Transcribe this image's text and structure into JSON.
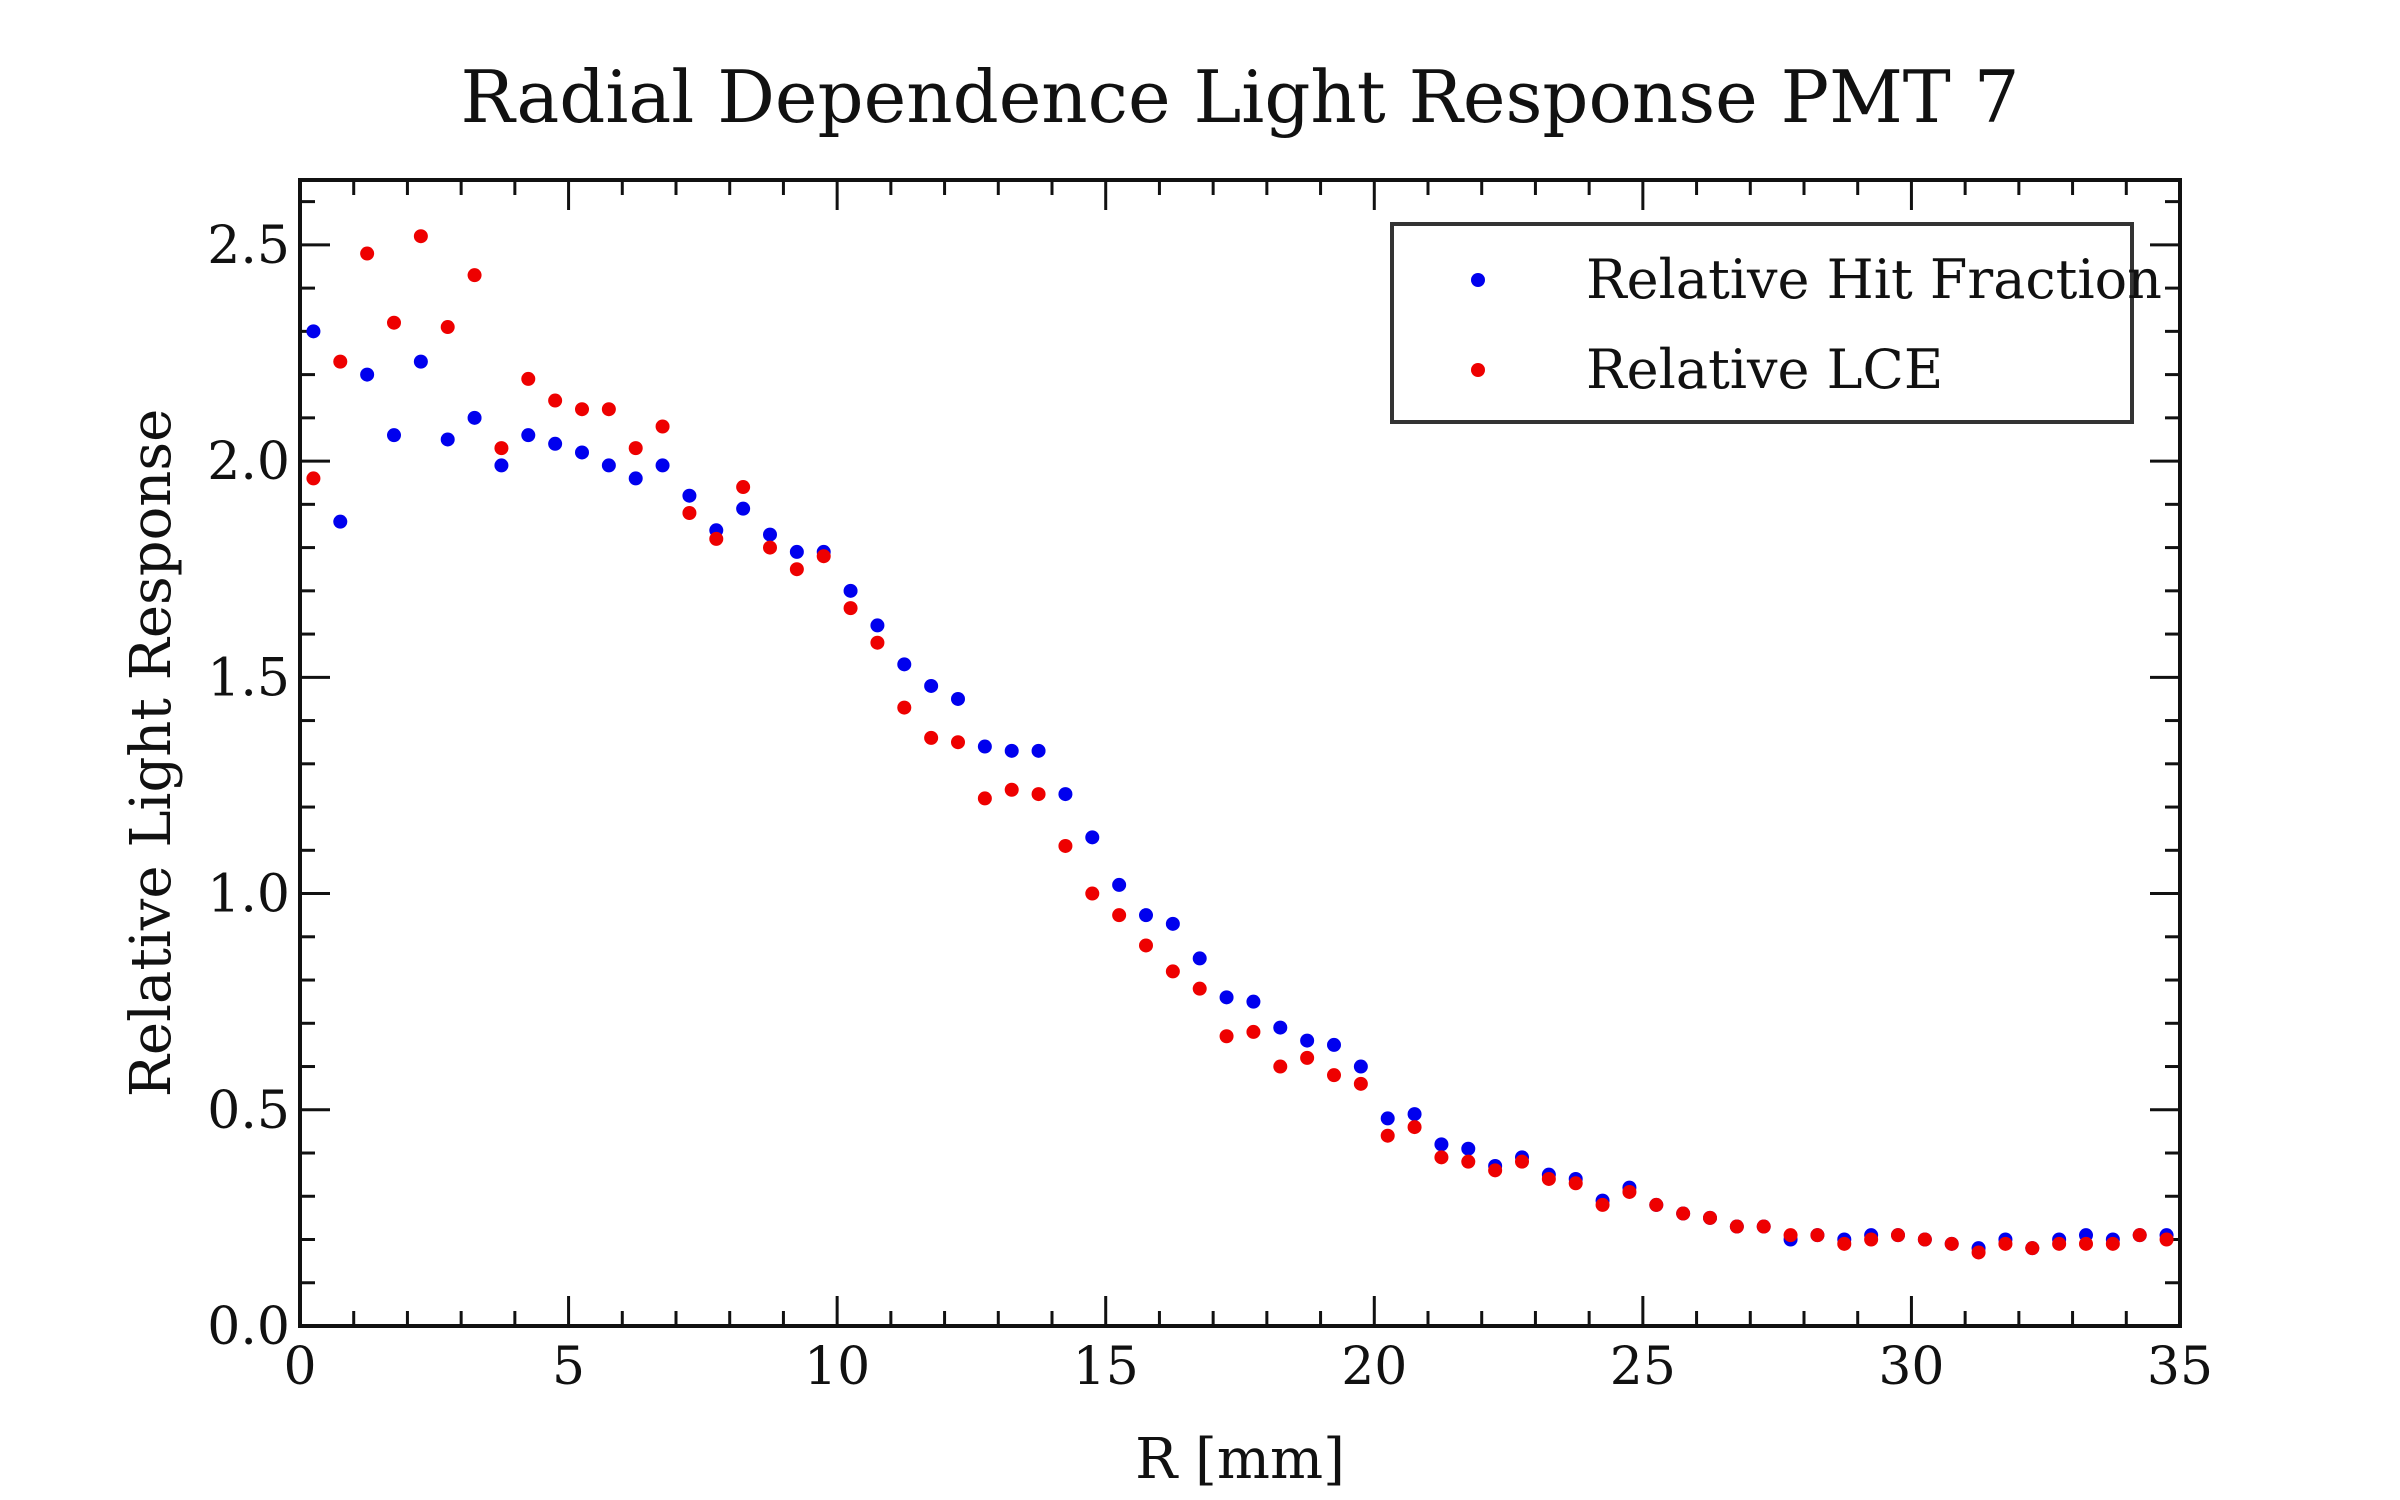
{
  "chart_data": {
    "type": "scatter",
    "title": "Radial Dependence Light Response PMT 7",
    "xlabel": "R [mm]",
    "ylabel": "Relative Light Response",
    "xlim": [
      0,
      35
    ],
    "ylim": [
      0,
      2.65
    ],
    "xticks": [
      "0",
      "5",
      "10",
      "15",
      "20",
      "25",
      "30",
      "35"
    ],
    "yticks": [
      "0.0",
      "0.5",
      "1.0",
      "1.5",
      "2.0",
      "2.5"
    ],
    "grid": false,
    "legend": "top-right",
    "colors": {
      "hit_fraction": "#0000ee",
      "lce": "#ee0000"
    },
    "x": [
      0.25,
      0.75,
      1.25,
      1.75,
      2.25,
      2.75,
      3.25,
      3.75,
      4.25,
      4.75,
      5.25,
      5.75,
      6.25,
      6.75,
      7.25,
      7.75,
      8.25,
      8.75,
      9.25,
      9.75,
      10.25,
      10.75,
      11.25,
      11.75,
      12.25,
      12.75,
      13.25,
      13.75,
      14.25,
      14.75,
      15.25,
      15.75,
      16.25,
      16.75,
      17.25,
      17.75,
      18.25,
      18.75,
      19.25,
      19.75,
      20.25,
      20.75,
      21.25,
      21.75,
      22.25,
      22.75,
      23.25,
      23.75,
      24.25,
      24.75,
      25.25,
      25.75,
      26.25,
      26.75,
      27.25,
      27.75,
      28.25,
      28.75,
      29.25,
      29.75,
      30.25,
      30.75,
      31.25,
      31.75,
      32.25,
      32.75,
      33.25,
      33.75,
      34.25,
      34.75
    ],
    "series": [
      {
        "name": "Relative Hit Fraction",
        "values": [
          2.3,
          1.86,
          2.2,
          2.06,
          2.23,
          2.05,
          2.1,
          1.99,
          2.06,
          2.04,
          2.02,
          1.99,
          1.96,
          1.99,
          1.92,
          1.84,
          1.89,
          1.83,
          1.79,
          1.79,
          1.7,
          1.62,
          1.53,
          1.48,
          1.45,
          1.34,
          1.33,
          1.33,
          1.23,
          1.13,
          1.02,
          0.95,
          0.93,
          0.85,
          0.76,
          0.75,
          0.69,
          0.66,
          0.65,
          0.6,
          0.48,
          0.49,
          0.42,
          0.41,
          0.37,
          0.39,
          0.35,
          0.34,
          0.29,
          0.32,
          0.28,
          0.26,
          0.25,
          0.23,
          0.23,
          0.2,
          0.21,
          0.2,
          0.21,
          0.21,
          0.2,
          0.19,
          0.18,
          0.2,
          0.18,
          0.2,
          0.21,
          0.2,
          0.21,
          0.21
        ]
      },
      {
        "name": "Relative LCE",
        "values": [
          1.96,
          2.23,
          2.48,
          2.32,
          2.52,
          2.31,
          2.43,
          2.03,
          2.19,
          2.14,
          2.12,
          2.12,
          2.03,
          2.08,
          1.88,
          1.82,
          1.94,
          1.8,
          1.75,
          1.78,
          1.66,
          1.58,
          1.43,
          1.36,
          1.35,
          1.22,
          1.24,
          1.23,
          1.11,
          1.0,
          0.95,
          0.88,
          0.82,
          0.78,
          0.67,
          0.68,
          0.6,
          0.62,
          0.58,
          0.56,
          0.44,
          0.46,
          0.39,
          0.38,
          0.36,
          0.38,
          0.34,
          0.33,
          0.28,
          0.31,
          0.28,
          0.26,
          0.25,
          0.23,
          0.23,
          0.21,
          0.21,
          0.19,
          0.2,
          0.21,
          0.2,
          0.19,
          0.17,
          0.19,
          0.18,
          0.19,
          0.19,
          0.19,
          0.21,
          0.2
        ]
      }
    ]
  }
}
